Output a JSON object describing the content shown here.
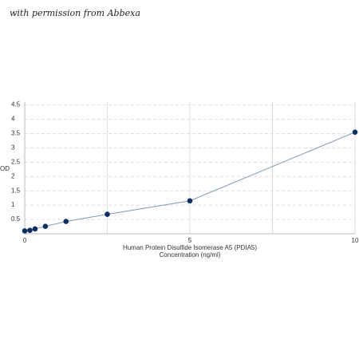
{
  "watermark": "with permission from Abbexa",
  "chart_data": {
    "type": "scatter",
    "xlabel": [
      "Human Protein Disulfide Isomerase A5 (PDIA5)",
      "Concentration (ng/ml)"
    ],
    "ylabel": "OD",
    "x": [
      0,
      0.156,
      0.312,
      0.625,
      1.25,
      2.5,
      5,
      10
    ],
    "series": [
      {
        "color": "#0d2f63",
        "line_color": "#7f97b8",
        "values": [
          0.1,
          0.12,
          0.17,
          0.26,
          0.43,
          0.68,
          1.15,
          3.55
        ]
      }
    ],
    "xlim": [
      0,
      10
    ],
    "xticks": [
      0,
      5,
      10
    ],
    "x_minor_grid": [
      2.5,
      7.5
    ],
    "ylim": [
      0,
      4.6
    ],
    "yticks": [
      0.5,
      1,
      1.5,
      2,
      2.5,
      3,
      3.5,
      4,
      4.5
    ],
    "grid": true
  }
}
